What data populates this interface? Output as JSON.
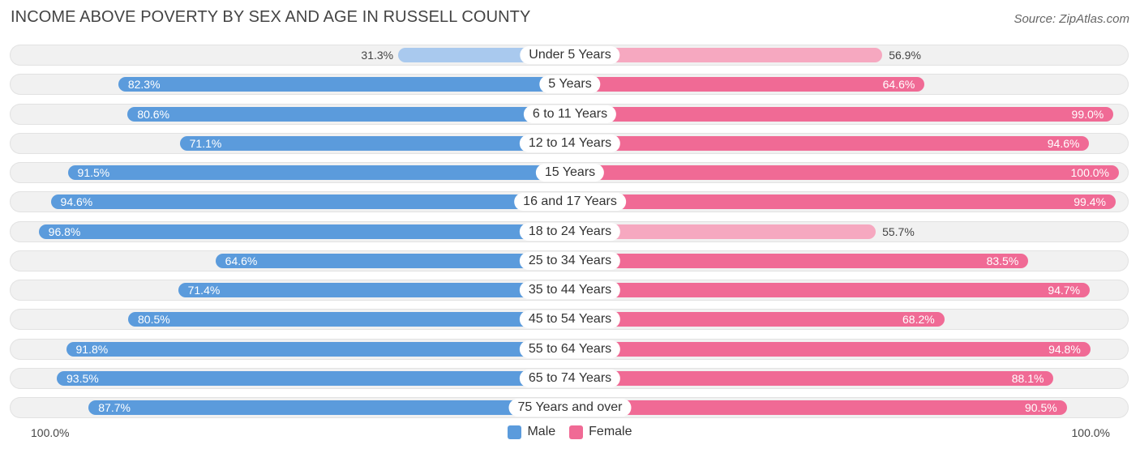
{
  "title": "INCOME ABOVE POVERTY BY SEX AND AGE IN RUSSELL COUNTY",
  "source": "Source: ZipAtlas.com",
  "colors": {
    "male_strong": "#5b9bdc",
    "male_light": "#a9c9ee",
    "female_strong": "#f06a95",
    "female_light": "#f6a8c0",
    "track": "#f1f1f1"
  },
  "legend": {
    "male": "Male",
    "female": "Female"
  },
  "axis": {
    "left": "100.0%",
    "right": "100.0%"
  },
  "chart_data": {
    "type": "bar",
    "orientation": "horizontal-diverging",
    "title": "INCOME ABOVE POVERTY BY SEX AND AGE IN RUSSELL COUNTY",
    "xlim": [
      0,
      100
    ],
    "categories": [
      "Under 5 Years",
      "5 Years",
      "6 to 11 Years",
      "12 to 14 Years",
      "15 Years",
      "16 and 17 Years",
      "18 to 24 Years",
      "25 to 34 Years",
      "35 to 44 Years",
      "45 to 54 Years",
      "55 to 64 Years",
      "65 to 74 Years",
      "75 Years and over"
    ],
    "series": [
      {
        "name": "Male",
        "side": "left",
        "values": [
          31.3,
          82.3,
          80.6,
          71.1,
          91.5,
          94.6,
          96.8,
          64.6,
          71.4,
          80.5,
          91.8,
          93.5,
          87.7
        ]
      },
      {
        "name": "Female",
        "side": "right",
        "values": [
          56.9,
          64.6,
          99.0,
          94.6,
          100.0,
          99.4,
          55.7,
          83.5,
          94.7,
          68.2,
          94.8,
          88.1,
          90.5
        ]
      }
    ]
  }
}
